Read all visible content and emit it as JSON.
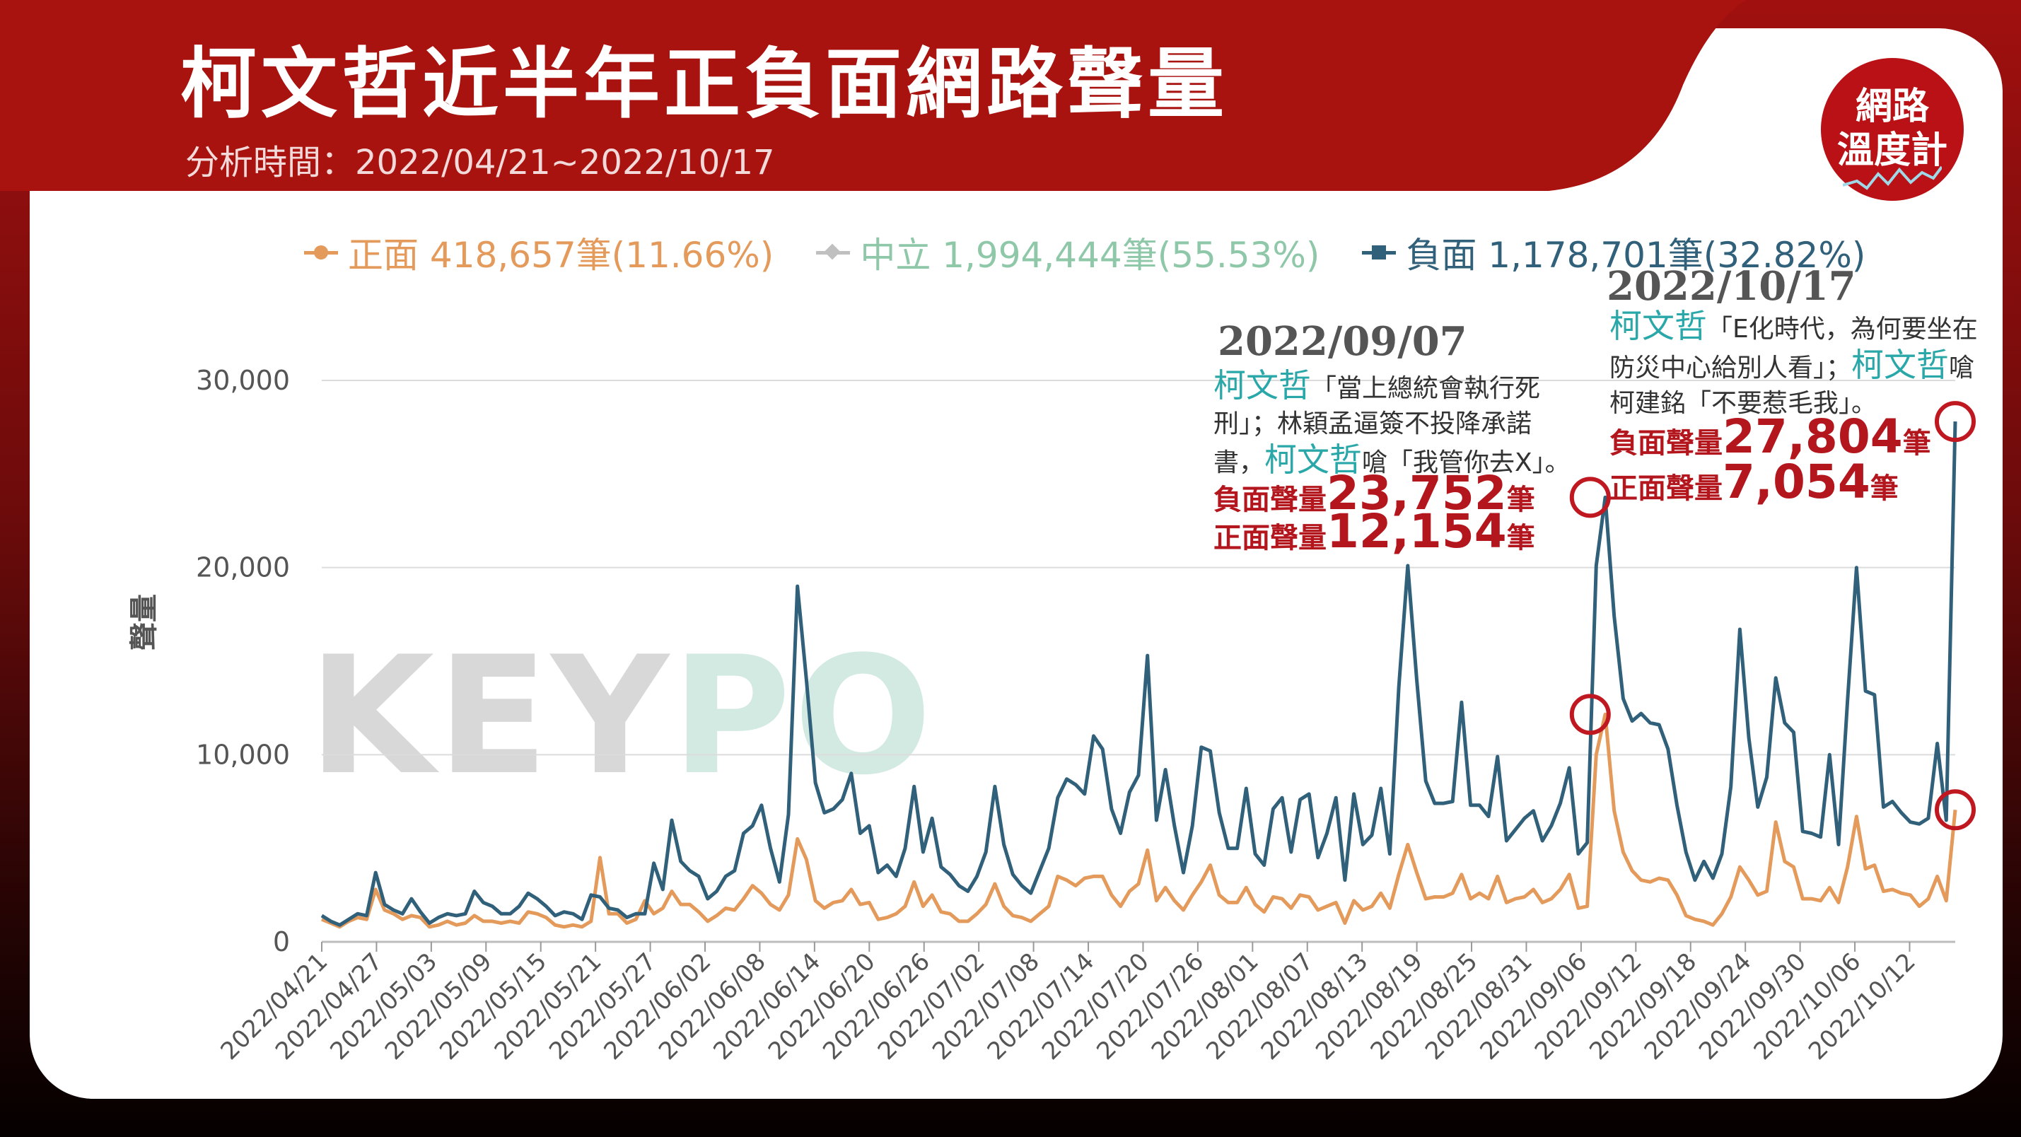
{
  "header": {
    "title": "柯文哲近半年正負面網路聲量",
    "subtitle": "分析時間：2022/04/21~2022/10/17"
  },
  "badge": {
    "line1": "網路",
    "line2": "溫度計"
  },
  "watermark": {
    "text_a": "KEY",
    "text_b": "PO"
  },
  "legend": {
    "positive": "正面 418,657筆(11.66%)",
    "neutral": "中立 1,994,444筆(55.53%)",
    "negative": "負面 1,178,701筆(32.82%)"
  },
  "colors": {
    "positive": "#e39a5b",
    "neutral": "#b7b7b7",
    "negative": "#30607a",
    "highlight": "#2aa7a8",
    "alert": "#c01820"
  },
  "annotations": {
    "a1": {
      "date": "2022/09/07",
      "text1_name": "柯文哲",
      "text1": "「當上總統會執行死刑」；林穎孟逼簽不投降承諾書，",
      "text2_name": "柯文哲",
      "text2": "嗆「我管你去X」。",
      "neg_label": "負面聲量",
      "neg_value": "23,752",
      "neg_unit": "筆",
      "pos_label": "正面聲量",
      "pos_value": "12,154",
      "pos_unit": "筆"
    },
    "a2": {
      "date": "2022/10/17",
      "text1_name": "柯文哲",
      "text1": "「E化時代，為何要坐在防災中心給別人看」；",
      "text2_name": "柯文哲",
      "text2": "嗆柯建銘「不要惹毛我」。",
      "neg_label": "負面聲量",
      "neg_value": "27,804",
      "neg_unit": "筆",
      "pos_label": "正面聲量",
      "pos_value": "7,054",
      "pos_unit": "筆"
    }
  },
  "chart_data": {
    "type": "line",
    "title": "柯文哲近半年正負面網路聲量",
    "ylabel": "聲量",
    "ylim": [
      0,
      30000
    ],
    "yticks": [
      0,
      10000,
      20000,
      30000
    ],
    "ytick_labels": [
      "0",
      "10,000",
      "20,000",
      "30,000"
    ],
    "grid": true,
    "legend_position": "top",
    "xtick_labels": [
      "2022/04/21",
      "2022/04/27",
      "2022/05/03",
      "2022/05/09",
      "2022/05/15",
      "2022/05/21",
      "2022/05/27",
      "2022/06/02",
      "2022/06/08",
      "2022/06/14",
      "2022/06/20",
      "2022/06/26",
      "2022/07/02",
      "2022/07/08",
      "2022/07/14",
      "2022/07/20",
      "2022/07/26",
      "2022/08/01",
      "2022/08/07",
      "2022/08/13",
      "2022/08/19",
      "2022/08/25",
      "2022/08/31",
      "2022/09/06",
      "2022/09/12",
      "2022/09/18",
      "2022/09/24",
      "2022/09/30",
      "2022/10/06",
      "2022/10/12"
    ],
    "x_start": "2022/04/21",
    "x_end": "2022/10/17",
    "series": [
      {
        "name": "負面",
        "key": "negative",
        "values": [
          1400,
          1100,
          900,
          1200,
          1500,
          1400,
          3700,
          2000,
          1700,
          1500,
          2300,
          1600,
          1000,
          1300,
          1500,
          1400,
          1500,
          2700,
          2100,
          1900,
          1500,
          1500,
          1900,
          2600,
          2300,
          1900,
          1400,
          1600,
          1500,
          1200,
          2500,
          2400,
          1800,
          1700,
          1300,
          1500,
          1500,
          4200,
          2800,
          6500,
          4300,
          3800,
          3500,
          2300,
          2700,
          3500,
          3800,
          5800,
          6200,
          7300,
          5000,
          3200,
          6800,
          19000,
          14000,
          8500,
          6900,
          7100,
          7600,
          9000,
          5800,
          6200,
          3700,
          4100,
          3500,
          5000,
          8300,
          4800,
          6600,
          4000,
          3600,
          3000,
          2700,
          3500,
          4800,
          8300,
          5200,
          3600,
          3000,
          2600,
          3800,
          5000,
          7700,
          8700,
          8400,
          7900,
          11000,
          10300,
          7100,
          5800,
          8000,
          8900,
          15300,
          6500,
          9200,
          6200,
          3700,
          6200,
          10400,
          10200,
          6900,
          5000,
          5000,
          8200,
          4700,
          4100,
          7100,
          7700,
          4800,
          7600,
          7900,
          4500,
          5800,
          7700,
          3300,
          7900,
          5200,
          5700,
          8200,
          4700,
          13600,
          20100,
          14000,
          8600,
          7400,
          7400,
          7500,
          12800,
          7300,
          7300,
          6700,
          9900,
          5400,
          6000,
          6600,
          7000,
          5400,
          6200,
          7400,
          9300,
          4700,
          5300,
          20100,
          23752,
          17400,
          13000,
          11800,
          12200,
          11700,
          11600,
          10300,
          7300,
          4800,
          3300,
          4300,
          3400,
          4700,
          8300,
          16700,
          10900,
          7200,
          8800,
          14100,
          11700,
          11200,
          5900,
          5800,
          5600,
          10000,
          5200,
          12900,
          20000,
          13400,
          13200,
          7200,
          7500,
          6900,
          6400,
          6300,
          6600,
          10600,
          6500,
          27804
        ]
      },
      {
        "name": "正面",
        "key": "positive",
        "values": [
          1200,
          1000,
          800,
          1100,
          1300,
          1200,
          2800,
          1700,
          1500,
          1200,
          1400,
          1300,
          800,
          900,
          1100,
          900,
          1000,
          1400,
          1100,
          1100,
          1000,
          1100,
          1000,
          1600,
          1500,
          1300,
          900,
          800,
          900,
          800,
          1100,
          4500,
          1500,
          1500,
          1000,
          1200,
          2200,
          1500,
          1800,
          2700,
          2000,
          2000,
          1600,
          1100,
          1400,
          1800,
          1700,
          2300,
          3000,
          2600,
          2000,
          1700,
          2500,
          5500,
          4400,
          2200,
          1800,
          2100,
          2200,
          2800,
          2000,
          2100,
          1200,
          1300,
          1500,
          1900,
          3200,
          1900,
          2500,
          1600,
          1500,
          1100,
          1100,
          1500,
          2000,
          3100,
          1900,
          1400,
          1300,
          1100,
          1500,
          1900,
          3500,
          3300,
          3000,
          3400,
          3500,
          3500,
          2500,
          1900,
          2700,
          3100,
          4900,
          2200,
          2900,
          2200,
          1700,
          2500,
          3200,
          4100,
          2500,
          2100,
          2100,
          2900,
          2000,
          1600,
          2400,
          2300,
          1800,
          2500,
          2400,
          1700,
          1900,
          2100,
          1000,
          2200,
          1700,
          1900,
          2600,
          1800,
          3600,
          5200,
          3700,
          2300,
          2400,
          2400,
          2600,
          3600,
          2300,
          2600,
          2300,
          3500,
          2100,
          2300,
          2400,
          2800,
          2100,
          2300,
          2800,
          3600,
          1800,
          1900,
          10000,
          12154,
          7000,
          4800,
          3800,
          3300,
          3200,
          3400,
          3300,
          2500,
          1400,
          1200,
          1100,
          900,
          1500,
          2400,
          4000,
          3300,
          2500,
          2700,
          6400,
          4300,
          4000,
          2300,
          2300,
          2200,
          2900,
          2100,
          4000,
          6700,
          3900,
          4100,
          2700,
          2800,
          2600,
          2500,
          1900,
          2300,
          3500,
          2200,
          7054
        ]
      }
    ],
    "highlights": [
      {
        "date": "2022/09/07",
        "negative": 23752,
        "positive": 12154
      },
      {
        "date": "2022/10/17",
        "negative": 27804,
        "positive": 7054
      }
    ]
  }
}
